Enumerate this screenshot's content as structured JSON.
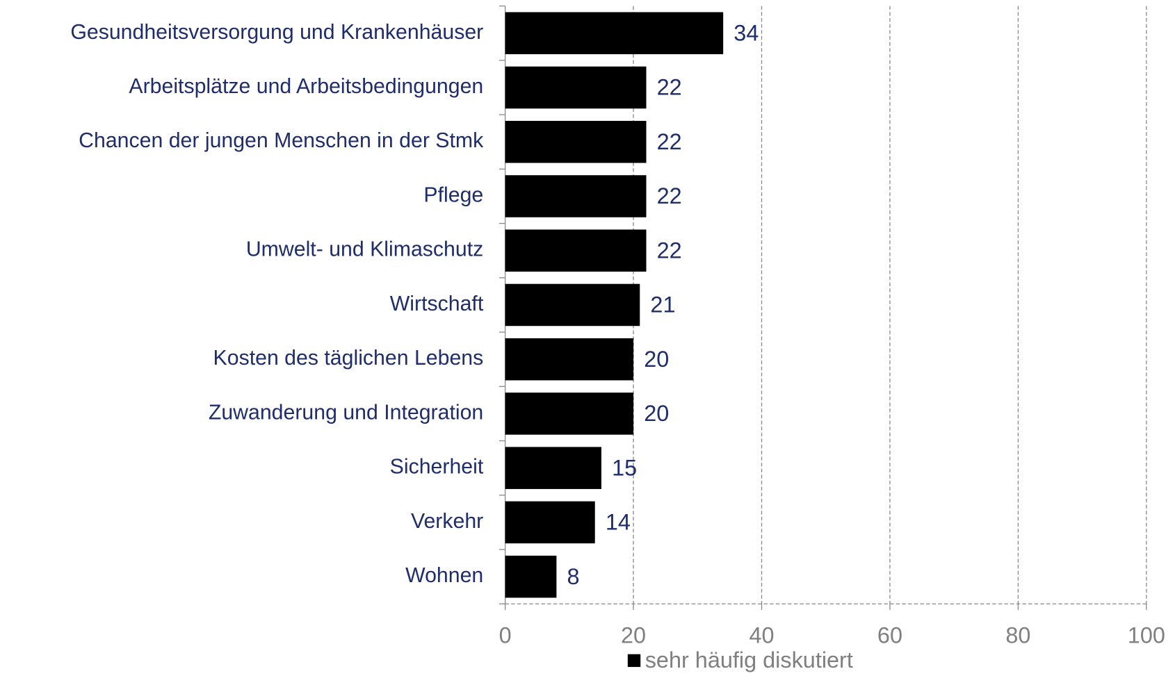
{
  "chart_data": {
    "type": "bar",
    "orientation": "horizontal",
    "categories": [
      "Gesundheitsversorgung und Krankenhäuser",
      "Arbeitsplätze und Arbeitsbedingungen",
      "Chancen der jungen Menschen in der Stmk",
      "Pflege",
      "Umwelt- und Klimaschutz",
      "Wirtschaft",
      "Kosten des täglichen Lebens",
      "Zuwanderung und Integration",
      "Sicherheit",
      "Verkehr",
      "Wohnen"
    ],
    "series": [
      {
        "name": "sehr häufig diskutiert",
        "color": "#000000",
        "values": [
          34,
          22,
          22,
          22,
          22,
          21,
          20,
          20,
          15,
          14,
          8
        ]
      }
    ],
    "xlim": [
      0,
      100
    ],
    "xticks": [
      0,
      20,
      40,
      60,
      80,
      100
    ],
    "grid": true,
    "legend": "bottom"
  }
}
